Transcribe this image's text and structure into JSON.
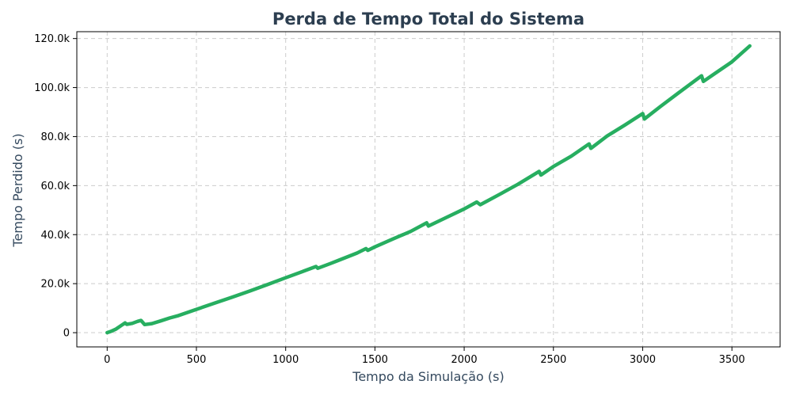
{
  "chart_data": {
    "type": "line",
    "title": "Perda de Tempo Total do Sistema",
    "xlabel": "Tempo da Simulação (s)",
    "ylabel": "Tempo Perdido (s)",
    "xlim": [
      -170,
      3770
    ],
    "ylim": [
      -5800,
      122800
    ],
    "grid": true,
    "x_ticks": [
      {
        "value": 0,
        "label": "0"
      },
      {
        "value": 500,
        "label": "500"
      },
      {
        "value": 1000,
        "label": "1000"
      },
      {
        "value": 1500,
        "label": "1500"
      },
      {
        "value": 2000,
        "label": "2000"
      },
      {
        "value": 2500,
        "label": "2500"
      },
      {
        "value": 3000,
        "label": "3000"
      },
      {
        "value": 3500,
        "label": "3500"
      }
    ],
    "y_ticks": [
      {
        "value": 0,
        "label": "0"
      },
      {
        "value": 20000,
        "label": "20.0k"
      },
      {
        "value": 40000,
        "label": "40.0k"
      },
      {
        "value": 60000,
        "label": "60.0k"
      },
      {
        "value": 80000,
        "label": "80.0k"
      },
      {
        "value": 100000,
        "label": "100.0k"
      },
      {
        "value": 120000,
        "label": "120.0k"
      }
    ],
    "series": [
      {
        "color": "#27ae60",
        "points": [
          [
            0,
            0
          ],
          [
            20,
            500
          ],
          [
            50,
            1500
          ],
          [
            80,
            3000
          ],
          [
            100,
            4000
          ],
          [
            110,
            3400
          ],
          [
            140,
            3800
          ],
          [
            170,
            4600
          ],
          [
            190,
            5000
          ],
          [
            210,
            3300
          ],
          [
            250,
            3700
          ],
          [
            300,
            4800
          ],
          [
            350,
            6000
          ],
          [
            400,
            7000
          ],
          [
            500,
            9500
          ],
          [
            600,
            12000
          ],
          [
            700,
            14500
          ],
          [
            800,
            17000
          ],
          [
            900,
            19700
          ],
          [
            1000,
            22400
          ],
          [
            1100,
            25100
          ],
          [
            1170,
            27000
          ],
          [
            1180,
            26300
          ],
          [
            1250,
            28200
          ],
          [
            1300,
            29600
          ],
          [
            1400,
            32500
          ],
          [
            1450,
            34300
          ],
          [
            1460,
            33600
          ],
          [
            1500,
            35000
          ],
          [
            1600,
            38200
          ],
          [
            1700,
            41300
          ],
          [
            1790,
            44800
          ],
          [
            1800,
            43500
          ],
          [
            1900,
            47000
          ],
          [
            2000,
            50500
          ],
          [
            2070,
            53300
          ],
          [
            2090,
            52200
          ],
          [
            2200,
            56500
          ],
          [
            2300,
            60500
          ],
          [
            2420,
            65800
          ],
          [
            2430,
            64300
          ],
          [
            2500,
            67800
          ],
          [
            2600,
            72000
          ],
          [
            2700,
            77000
          ],
          [
            2710,
            75200
          ],
          [
            2800,
            80200
          ],
          [
            2900,
            84700
          ],
          [
            3000,
            89400
          ],
          [
            3010,
            87200
          ],
          [
            3100,
            92300
          ],
          [
            3200,
            97800
          ],
          [
            3330,
            104800
          ],
          [
            3340,
            102500
          ],
          [
            3400,
            105500
          ],
          [
            3500,
            110500
          ],
          [
            3600,
            117000
          ]
        ]
      }
    ]
  },
  "colors": {
    "title": "#2c3e50",
    "axis_label": "#34495e",
    "line": "#27ae60"
  }
}
